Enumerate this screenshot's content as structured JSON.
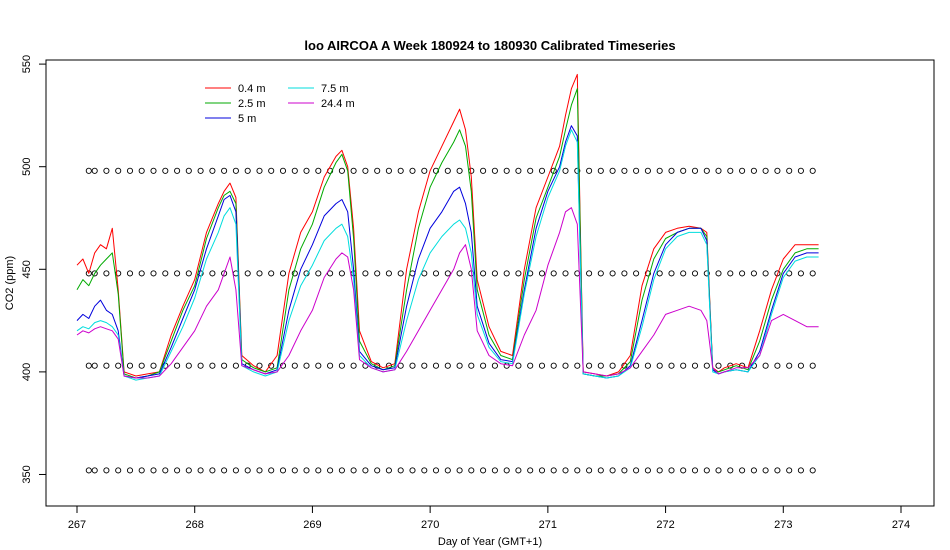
{
  "chart_data": {
    "type": "line",
    "title": "loo AIRCOA A  Week 180924 to 180930  Calibrated Timeseries",
    "xlabel": "Day of Year (GMT+1)",
    "ylabel": "CO2 (ppm)",
    "xlim": [
      267,
      274
    ],
    "ylim": [
      340,
      552
    ],
    "x_ticks": [
      267,
      268,
      269,
      270,
      271,
      272,
      273,
      274
    ],
    "y_ticks": [
      350,
      400,
      450,
      500,
      550
    ],
    "grid": false,
    "legend_position": "top-left",
    "series": [
      {
        "name": "0.4 m",
        "color": "#ff0000",
        "x": [
          267.0,
          267.05,
          267.1,
          267.15,
          267.2,
          267.25,
          267.3,
          267.35,
          267.4,
          267.5,
          267.6,
          267.7,
          267.8,
          267.9,
          268.0,
          268.1,
          268.2,
          268.25,
          268.3,
          268.35,
          268.4,
          268.5,
          268.6,
          268.7,
          268.8,
          268.9,
          269.0,
          269.1,
          269.2,
          269.25,
          269.3,
          269.35,
          269.4,
          269.5,
          269.6,
          269.7,
          269.8,
          269.9,
          270.0,
          270.1,
          270.2,
          270.25,
          270.3,
          270.35,
          270.4,
          270.5,
          270.6,
          270.7,
          270.8,
          270.9,
          271.0,
          271.1,
          271.15,
          271.2,
          271.25,
          271.3,
          271.4,
          271.5,
          271.6,
          271.7,
          271.8,
          271.9,
          272.0,
          272.1,
          272.2,
          272.3,
          272.35,
          272.4,
          272.45,
          272.5,
          272.6,
          272.7,
          272.8,
          272.9,
          273.0,
          273.1,
          273.2,
          273.3
        ],
        "y": [
          452,
          455,
          448,
          458,
          462,
          460,
          470,
          440,
          400,
          398,
          399,
          400,
          418,
          432,
          445,
          468,
          482,
          488,
          492,
          485,
          408,
          403,
          400,
          408,
          448,
          468,
          478,
          495,
          505,
          508,
          500,
          470,
          420,
          405,
          402,
          404,
          450,
          478,
          498,
          510,
          522,
          528,
          518,
          495,
          445,
          422,
          410,
          408,
          450,
          480,
          495,
          510,
          525,
          538,
          545,
          400,
          399,
          398,
          400,
          408,
          442,
          460,
          468,
          470,
          471,
          470,
          468,
          402,
          400,
          402,
          404,
          402,
          420,
          440,
          455,
          462,
          462,
          462
        ]
      },
      {
        "name": "2.5 m",
        "color": "#00aa00",
        "x": [
          267.0,
          267.05,
          267.1,
          267.15,
          267.2,
          267.25,
          267.3,
          267.35,
          267.4,
          267.5,
          267.6,
          267.7,
          267.8,
          267.9,
          268.0,
          268.1,
          268.2,
          268.25,
          268.3,
          268.35,
          268.4,
          268.5,
          268.6,
          268.7,
          268.8,
          268.9,
          269.0,
          269.1,
          269.2,
          269.25,
          269.3,
          269.35,
          269.4,
          269.5,
          269.6,
          269.7,
          269.8,
          269.9,
          270.0,
          270.1,
          270.2,
          270.25,
          270.3,
          270.35,
          270.4,
          270.5,
          270.6,
          270.7,
          270.8,
          270.9,
          271.0,
          271.1,
          271.15,
          271.2,
          271.25,
          271.3,
          271.4,
          271.5,
          271.6,
          271.7,
          271.8,
          271.9,
          272.0,
          272.1,
          272.2,
          272.3,
          272.35,
          272.4,
          272.45,
          272.5,
          272.6,
          272.7,
          272.8,
          272.9,
          273.0,
          273.1,
          273.2,
          273.3
        ],
        "y": [
          440,
          445,
          442,
          448,
          452,
          455,
          458,
          438,
          399,
          397,
          398,
          400,
          415,
          430,
          442,
          465,
          480,
          486,
          488,
          482,
          406,
          402,
          400,
          402,
          440,
          460,
          472,
          490,
          502,
          506,
          498,
          465,
          415,
          404,
          401,
          403,
          440,
          470,
          490,
          502,
          512,
          518,
          510,
          488,
          440,
          418,
          408,
          406,
          445,
          475,
          490,
          505,
          518,
          530,
          538,
          399,
          398,
          398,
          399,
          405,
          435,
          455,
          465,
          468,
          470,
          470,
          466,
          401,
          400,
          401,
          403,
          401,
          415,
          435,
          450,
          458,
          460,
          460
        ]
      },
      {
        "name": "5 m",
        "color": "#0000dd",
        "x": [
          267.0,
          267.05,
          267.1,
          267.15,
          267.2,
          267.25,
          267.3,
          267.35,
          267.4,
          267.5,
          267.6,
          267.7,
          267.8,
          267.9,
          268.0,
          268.1,
          268.2,
          268.25,
          268.3,
          268.35,
          268.4,
          268.5,
          268.6,
          268.7,
          268.8,
          268.9,
          269.0,
          269.1,
          269.2,
          269.25,
          269.3,
          269.35,
          269.4,
          269.5,
          269.6,
          269.7,
          269.8,
          269.9,
          270.0,
          270.1,
          270.2,
          270.25,
          270.3,
          270.35,
          270.4,
          270.5,
          270.6,
          270.7,
          270.8,
          270.9,
          271.0,
          271.1,
          271.15,
          271.2,
          271.25,
          271.3,
          271.4,
          271.5,
          271.6,
          271.7,
          271.8,
          271.9,
          272.0,
          272.1,
          272.2,
          272.3,
          272.35,
          272.4,
          272.45,
          272.5,
          272.6,
          272.7,
          272.8,
          272.9,
          273.0,
          273.1,
          273.2,
          273.3
        ],
        "y": [
          425,
          428,
          426,
          432,
          435,
          430,
          428,
          420,
          398,
          397,
          398,
          399,
          412,
          426,
          440,
          460,
          476,
          484,
          486,
          478,
          404,
          401,
          399,
          401,
          430,
          450,
          462,
          476,
          482,
          484,
          478,
          450,
          410,
          403,
          401,
          402,
          432,
          455,
          470,
          478,
          488,
          490,
          482,
          468,
          432,
          414,
          406,
          405,
          440,
          470,
          488,
          500,
          512,
          520,
          515,
          399,
          398,
          397,
          398,
          403,
          425,
          448,
          462,
          468,
          470,
          470,
          464,
          401,
          399,
          400,
          401,
          400,
          410,
          430,
          448,
          456,
          458,
          458
        ]
      },
      {
        "name": "7.5 m",
        "color": "#00dddd",
        "x": [
          267.0,
          267.05,
          267.1,
          267.15,
          267.2,
          267.25,
          267.3,
          267.35,
          267.4,
          267.5,
          267.6,
          267.7,
          267.8,
          267.9,
          268.0,
          268.1,
          268.2,
          268.25,
          268.3,
          268.35,
          268.4,
          268.5,
          268.6,
          268.7,
          268.8,
          268.9,
          269.0,
          269.1,
          269.2,
          269.25,
          269.3,
          269.35,
          269.4,
          269.5,
          269.6,
          269.7,
          269.8,
          269.9,
          270.0,
          270.1,
          270.2,
          270.25,
          270.3,
          270.35,
          270.4,
          270.5,
          270.6,
          270.7,
          270.8,
          270.9,
          271.0,
          271.1,
          271.15,
          271.2,
          271.25,
          271.3,
          271.4,
          271.5,
          271.6,
          271.7,
          271.8,
          271.9,
          272.0,
          272.1,
          272.2,
          272.3,
          272.35,
          272.4,
          272.45,
          272.5,
          272.6,
          272.7,
          272.8,
          272.9,
          273.0,
          273.1,
          273.2,
          273.3
        ],
        "y": [
          420,
          422,
          421,
          424,
          425,
          424,
          422,
          418,
          398,
          396,
          397,
          398,
          410,
          422,
          436,
          455,
          468,
          476,
          480,
          472,
          403,
          400,
          398,
          400,
          425,
          442,
          452,
          464,
          470,
          472,
          466,
          445,
          408,
          402,
          400,
          401,
          425,
          445,
          458,
          466,
          472,
          474,
          470,
          458,
          428,
          412,
          405,
          404,
          438,
          466,
          485,
          498,
          510,
          518,
          512,
          399,
          398,
          397,
          398,
          402,
          422,
          445,
          460,
          466,
          468,
          468,
          462,
          400,
          399,
          400,
          401,
          400,
          408,
          428,
          446,
          454,
          456,
          456
        ]
      },
      {
        "name": "24.4 m",
        "color": "#cc00cc",
        "x": [
          267.0,
          267.05,
          267.1,
          267.15,
          267.2,
          267.25,
          267.3,
          267.35,
          267.4,
          267.5,
          267.6,
          267.7,
          267.8,
          267.9,
          268.0,
          268.1,
          268.2,
          268.25,
          268.3,
          268.35,
          268.4,
          268.5,
          268.6,
          268.7,
          268.8,
          268.9,
          269.0,
          269.1,
          269.2,
          269.25,
          269.3,
          269.35,
          269.4,
          269.5,
          269.6,
          269.7,
          269.8,
          269.9,
          270.0,
          270.1,
          270.2,
          270.25,
          270.3,
          270.35,
          270.4,
          270.5,
          270.6,
          270.7,
          270.8,
          270.9,
          271.0,
          271.1,
          271.15,
          271.2,
          271.25,
          271.3,
          271.4,
          271.5,
          271.6,
          271.7,
          271.8,
          271.9,
          272.0,
          272.1,
          272.2,
          272.3,
          272.35,
          272.4,
          272.45,
          272.5,
          272.6,
          272.7,
          272.8,
          272.9,
          273.0,
          273.1,
          273.2,
          273.3
        ],
        "y": [
          418,
          420,
          419,
          421,
          422,
          421,
          420,
          416,
          398,
          397,
          397,
          398,
          404,
          412,
          420,
          432,
          440,
          448,
          456,
          440,
          403,
          401,
          399,
          400,
          408,
          420,
          430,
          446,
          455,
          458,
          456,
          440,
          406,
          402,
          400,
          401,
          410,
          420,
          430,
          440,
          450,
          458,
          462,
          450,
          420,
          408,
          404,
          403,
          418,
          430,
          452,
          468,
          478,
          480,
          472,
          400,
          399,
          398,
          399,
          402,
          410,
          418,
          428,
          430,
          432,
          430,
          425,
          402,
          399,
          400,
          402,
          402,
          408,
          425,
          428,
          425,
          422,
          422
        ]
      }
    ],
    "reference_markers": {
      "marker": "open-circle",
      "color": "#000000",
      "levels": [
        403,
        448,
        498,
        352
      ],
      "x": [
        267.1,
        267.15,
        267.25,
        267.35,
        267.45,
        267.55,
        267.65,
        267.75,
        267.85,
        267.95,
        268.05,
        268.15,
        268.25,
        268.35,
        268.45,
        268.55,
        268.65,
        268.75,
        268.85,
        268.95,
        269.05,
        269.15,
        269.25,
        269.35,
        269.45,
        269.55,
        269.65,
        269.75,
        269.85,
        269.95,
        270.05,
        270.15,
        270.25,
        270.35,
        270.45,
        270.55,
        270.65,
        270.75,
        270.85,
        270.95,
        271.05,
        271.15,
        271.25,
        271.35,
        271.45,
        271.55,
        271.65,
        271.75,
        271.85,
        271.95,
        272.05,
        272.15,
        272.25,
        272.35,
        272.45,
        272.55,
        272.65,
        272.75,
        272.85,
        272.95,
        273.05,
        273.15,
        273.25
      ]
    }
  }
}
